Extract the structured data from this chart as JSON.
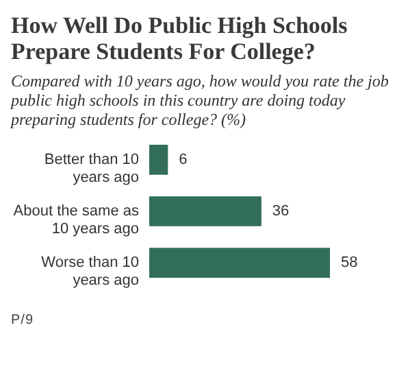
{
  "chart_data": {
    "type": "bar",
    "orientation": "horizontal",
    "title": "How Well Do Public High Schools Prepare Students For College?",
    "subtitle": "Compared with 10 years ago, how would you rate the job public high schools in this country are doing today preparing students for college? (%)",
    "categories": [
      "Better than 10 years ago",
      "About the same as 10 years ago",
      "Worse than 10 years ago"
    ],
    "values": [
      6,
      36,
      58
    ],
    "color": "#336e5c",
    "data_labels": true,
    "annotations": [
      "P/9"
    ]
  }
}
